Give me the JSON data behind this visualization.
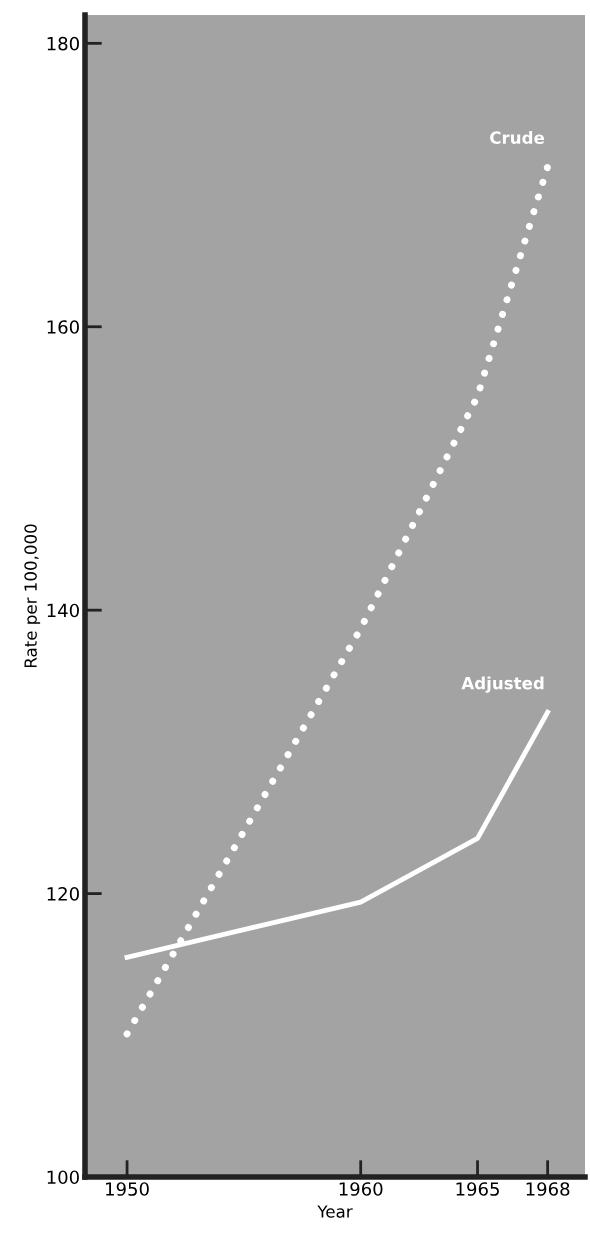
{
  "chart_data": {
    "type": "line",
    "xlabel": "Year",
    "ylabel": "Rate per 100,000",
    "x": [
      1950,
      1960,
      1965,
      1968
    ],
    "series": [
      {
        "name": "Crude",
        "color": "#ffffff",
        "line_style": "dotted",
        "values": [
          110.1,
          138.7,
          155.1,
          171.3
        ]
      },
      {
        "name": "Adjusted",
        "color": "#ffffff",
        "line_style": "solid",
        "values": [
          115.5,
          119.4,
          123.9,
          132.8
        ]
      }
    ],
    "xlim": [
      1948.2,
      1969.6
    ],
    "ylim": [
      100,
      182
    ],
    "xticks": [
      1950,
      1960,
      1965,
      1968
    ],
    "yticks": [
      100,
      120,
      140,
      160,
      180
    ],
    "grid": false,
    "legend": false,
    "marker": "none"
  }
}
